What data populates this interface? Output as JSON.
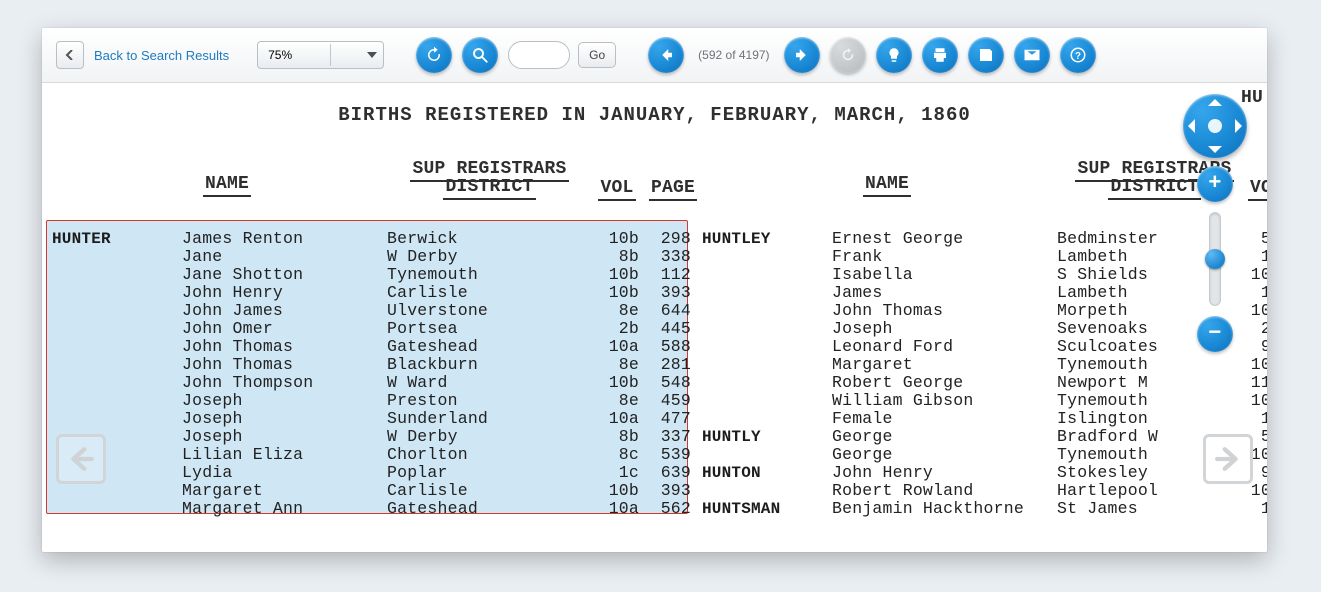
{
  "toolbar": {
    "back_link": "Back to Search Results",
    "zoom_value": "75%",
    "go_label": "Go",
    "page_input_placeholder": "",
    "page_counter": "(592 of 4197)"
  },
  "document": {
    "title_line": "BIRTHS REGISTERED IN JANUARY, FEBRUARY, MARCH, 1860",
    "top_right_fragment": "HU",
    "headers": {
      "name": "NAME",
      "district_line1": "SUP REGISTRARS",
      "district_line2": "DISTRICT",
      "vol": "VOL",
      "page": "PAGE",
      "vol_trunc": "VO"
    },
    "highlight": {
      "bg": "#cfe7f5",
      "border": "#cf3a2c"
    },
    "left": {
      "surname": "HUNTER",
      "rows": [
        {
          "name": "James Renton",
          "district": "Berwick",
          "vol": "10b",
          "page": "298"
        },
        {
          "name": "Jane",
          "district": "W Derby",
          "vol": "8b",
          "page": "338"
        },
        {
          "name": "Jane Shotton",
          "district": "Tynemouth",
          "vol": "10b",
          "page": "112"
        },
        {
          "name": "John Henry",
          "district": "Carlisle",
          "vol": "10b",
          "page": "393"
        },
        {
          "name": "John James",
          "district": "Ulverstone",
          "vol": "8e",
          "page": "644"
        },
        {
          "name": "John Omer",
          "district": "Portsea",
          "vol": "2b",
          "page": "445"
        },
        {
          "name": "John Thomas",
          "district": "Gateshead",
          "vol": "10a",
          "page": "588"
        },
        {
          "name": "John Thomas",
          "district": "Blackburn",
          "vol": "8e",
          "page": "281"
        },
        {
          "name": "John Thompson",
          "district": "W Ward",
          "vol": "10b",
          "page": "548"
        },
        {
          "name": "Joseph",
          "district": "Preston",
          "vol": "8e",
          "page": "459"
        },
        {
          "name": "Joseph",
          "district": "Sunderland",
          "vol": "10a",
          "page": "477"
        },
        {
          "name": "Joseph",
          "district": "W Derby",
          "vol": "8b",
          "page": "337"
        },
        {
          "name": "Lilian Eliza",
          "district": "Chorlton",
          "vol": "8c",
          "page": "539"
        },
        {
          "name": "Lydia",
          "district": "Poplar",
          "vol": "1c",
          "page": "639"
        },
        {
          "name": "Margaret",
          "district": "Carlisle",
          "vol": "10b",
          "page": "393"
        },
        {
          "name": "Margaret Ann",
          "district": "Gateshead",
          "vol": "10a",
          "page": "562"
        }
      ]
    },
    "right": {
      "groups": [
        {
          "surname": "HUNTLEY",
          "start": 0,
          "rows": [
            {
              "name": "Ernest George",
              "district": "Bedminster",
              "vol": "5"
            },
            {
              "name": "Frank",
              "district": "Lambeth",
              "vol": "1"
            },
            {
              "name": "Isabella",
              "district": "S Shields",
              "vol": "10"
            },
            {
              "name": "James",
              "district": "Lambeth",
              "vol": "1"
            },
            {
              "name": "John Thomas",
              "district": "Morpeth",
              "vol": "10"
            },
            {
              "name": "Joseph",
              "district": "Sevenoaks",
              "vol": "2"
            },
            {
              "name": "Leonard Ford",
              "district": "Sculcoates",
              "vol": "9"
            },
            {
              "name": "Margaret",
              "district": "Tynemouth",
              "vol": "10"
            },
            {
              "name": "Robert George",
              "district": "Newport M",
              "vol": "11"
            },
            {
              "name": "William Gibson",
              "district": "Tynemouth",
              "vol": "10"
            },
            {
              "name": "Female",
              "district": "Islington",
              "vol": "1"
            }
          ]
        },
        {
          "surname": "HUNTLY",
          "start": 11,
          "rows": [
            {
              "name": "George",
              "district": "Bradford W",
              "vol": "5"
            },
            {
              "name": "George",
              "district": "Tynemouth",
              "vol": "10"
            }
          ]
        },
        {
          "surname": "HUNTON",
          "start": 13,
          "rows": [
            {
              "name": "John Henry",
              "district": "Stokesley",
              "vol": "9"
            },
            {
              "name": "Robert Rowland",
              "district": "Hartlepool",
              "vol": "10"
            }
          ]
        },
        {
          "surname": "HUNTSMAN",
          "start": 15,
          "rows": [
            {
              "name": "Benjamin Hackthorne",
              "district": "St James",
              "vol": "1"
            }
          ]
        }
      ]
    }
  },
  "panzoom": {
    "thumb_pct": 50
  },
  "colors": {
    "icon_blue": "#1b8ad6"
  }
}
